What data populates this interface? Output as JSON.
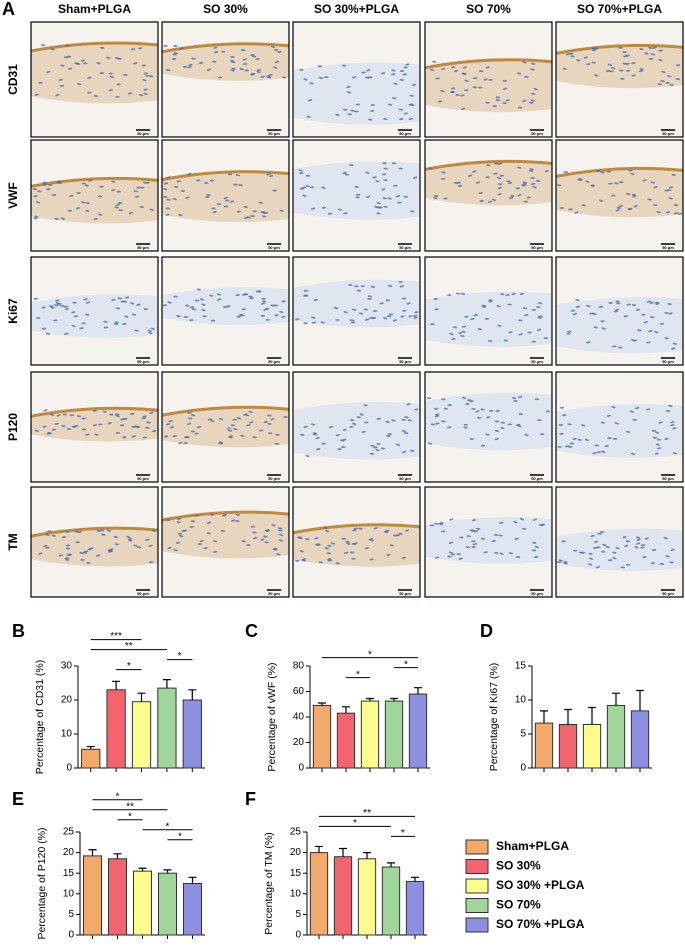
{
  "panel_a": {
    "label": "A",
    "columns": [
      "Sham+PLGA",
      "SO 30%",
      "SO 30%+PLGA",
      "SO 70%",
      "SO 70%+PLGA"
    ],
    "rows": [
      "CD31",
      "VWF",
      "Ki67",
      "P120",
      "TM"
    ],
    "scale_bar": "50 μm"
  },
  "legend": {
    "items": [
      {
        "name": "Sham+PLGA",
        "color": "#f2aa6c"
      },
      {
        "name": "SO 30%",
        "color": "#f2656f"
      },
      {
        "name": "SO 30% +PLGA",
        "color": "#fbfb8e"
      },
      {
        "name": "SO 70%",
        "color": "#a0d69c"
      },
      {
        "name": "SO 70% +PLGA",
        "color": "#8d8fe0"
      }
    ]
  },
  "chart_data": [
    {
      "type": "bar",
      "panel": "B",
      "y_label": "Percentage of CD31 (%)",
      "categories": [
        null,
        null,
        null,
        null,
        null
      ],
      "values": [
        5.5,
        23,
        19.5,
        23.5,
        20
      ],
      "errors": [
        0.8,
        2.5,
        2.5,
        2.5,
        3
      ],
      "ylim": [
        0,
        30
      ],
      "yticks": [
        0,
        10,
        20,
        30
      ],
      "brackets": [
        {
          "from": 1,
          "to": 2,
          "label": "*"
        },
        {
          "from": 3,
          "to": 4,
          "label": "*"
        },
        {
          "from": 0,
          "to": 3,
          "label": "**"
        },
        {
          "from": 0,
          "to": 2,
          "label": "***"
        }
      ]
    },
    {
      "type": "bar",
      "panel": "C",
      "y_label": "Percentage of vWF (%)",
      "categories": [
        null,
        null,
        null,
        null,
        null
      ],
      "values": [
        49,
        43,
        52.5,
        52.5,
        58
      ],
      "errors": [
        2,
        5,
        2,
        2,
        5
      ],
      "ylim": [
        0,
        80
      ],
      "yticks": [
        0,
        20,
        40,
        60,
        80
      ],
      "brackets": [
        {
          "from": 1,
          "to": 2,
          "label": "*"
        },
        {
          "from": 3,
          "to": 4,
          "label": "*"
        },
        {
          "from": 0,
          "to": 4,
          "label": "*"
        }
      ]
    },
    {
      "type": "bar",
      "panel": "D",
      "y_label": "Percentage of Ki67 (%)",
      "categories": [
        null,
        null,
        null,
        null,
        null
      ],
      "values": [
        6.6,
        6.4,
        6.4,
        9.2,
        8.4
      ],
      "errors": [
        1.8,
        2.2,
        2.5,
        1.8,
        3
      ],
      "ylim": [
        0,
        15
      ],
      "yticks": [
        0,
        5,
        10,
        15
      ],
      "brackets": []
    },
    {
      "type": "bar",
      "panel": "E",
      "y_label": "Percentage of P120 (%)",
      "categories": [
        null,
        null,
        null,
        null,
        null
      ],
      "values": [
        19.2,
        18.5,
        15.5,
        15,
        12.5
      ],
      "errors": [
        1.5,
        1.2,
        0.7,
        0.8,
        1.5
      ],
      "ylim": [
        0,
        25
      ],
      "yticks": [
        0,
        5,
        10,
        15,
        20,
        25
      ],
      "brackets": [
        {
          "from": 3,
          "to": 4,
          "label": "*"
        },
        {
          "from": 2,
          "to": 4,
          "label": "*"
        },
        {
          "from": 1,
          "to": 2,
          "label": "*"
        },
        {
          "from": 0,
          "to": 3,
          "label": "**"
        },
        {
          "from": 0,
          "to": 2,
          "label": "*"
        }
      ]
    },
    {
      "type": "bar",
      "panel": "F",
      "y_label": "Percentage of TM (%)",
      "categories": [
        null,
        null,
        null,
        null,
        null
      ],
      "values": [
        20,
        19,
        18.5,
        16.5,
        13
      ],
      "errors": [
        1.5,
        2,
        1.5,
        1,
        1
      ],
      "ylim": [
        0,
        25
      ],
      "yticks": [
        0,
        5,
        10,
        15,
        20,
        25
      ],
      "brackets": [
        {
          "from": 3,
          "to": 4,
          "label": "*"
        },
        {
          "from": 0,
          "to": 3,
          "label": "*"
        },
        {
          "from": 0,
          "to": 4,
          "label": "**"
        }
      ]
    }
  ]
}
